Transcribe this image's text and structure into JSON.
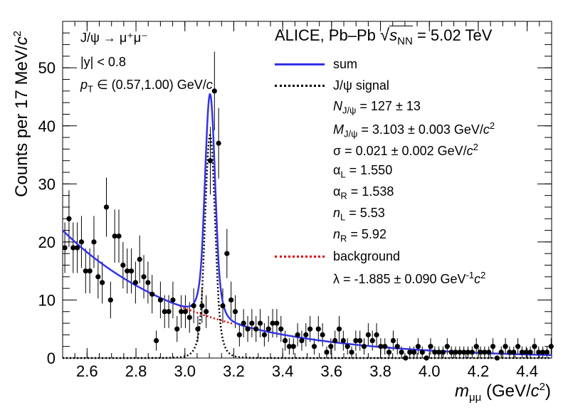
{
  "chart_data": {
    "type": "scatter",
    "title": "ALICE, Pb–Pb √s_NN = 5.02 TeV",
    "title_parts": {
      "experiment": "ALICE, Pb–Pb",
      "sqrt": "√",
      "s": "s",
      "sub": "NN",
      "energy": "= 5.02 TeV"
    },
    "xlabel": "m_μμ (GeV/c²)",
    "xlabel_parts": {
      "m": "m",
      "sub": "μμ",
      "units": "(GeV/",
      "c": "c",
      "sup": "2",
      "close": ")"
    },
    "ylabel": "Counts per 17 MeV/c²",
    "ylabel_parts": {
      "text": "Counts per 17 MeV/",
      "c": "c",
      "sup": "2"
    },
    "xlim": [
      2.5,
      4.5
    ],
    "ylim": [
      0,
      58
    ],
    "xticks": [
      2.6,
      2.8,
      3.0,
      3.2,
      3.4,
      3.6,
      3.8,
      4.0,
      4.2,
      4.4
    ],
    "xtick_labels": [
      "2.6",
      "2.8",
      "3.0",
      "3.2",
      "3.4",
      "3.6",
      "3.8",
      "4.0",
      "4.2",
      "4.4"
    ],
    "yticks": [
      0,
      10,
      20,
      30,
      40,
      50
    ],
    "ytick_labels": [
      "0",
      "10",
      "20",
      "30",
      "40",
      "50"
    ],
    "annotations": {
      "decay": "J/ψ → μ⁺μ⁻",
      "rapidity": "|y| < 0.8",
      "pt": "p_T ∈ (0.57,1.00) GeV/c",
      "pt_parts": {
        "p": "p",
        "sub": "T",
        "range": " ∈ (0.57,1.00) GeV/",
        "c": "c"
      }
    },
    "legend": [
      {
        "label": "sum",
        "color": "#3333e6",
        "style": "solid"
      },
      {
        "label": "J/ψ signal",
        "color": "#000000",
        "style": "dotted"
      },
      {
        "label": "N_J/ψ = 127 ± 13",
        "style": "text"
      },
      {
        "label": "M_J/ψ = 3.103 ± 0.003 GeV/c²",
        "style": "text"
      },
      {
        "label": "σ = 0.021 ± 0.002 GeV/c²",
        "style": "text"
      },
      {
        "label": "α_L = 1.550",
        "style": "text"
      },
      {
        "label": "α_R = 1.538",
        "style": "text"
      },
      {
        "label": "n_L = 5.53",
        "style": "text"
      },
      {
        "label": "n_R = 5.92",
        "style": "text"
      },
      {
        "label": "background",
        "color": "#e00000",
        "style": "dotted"
      },
      {
        "label": "λ = -1.885 ± 0.090 GeV⁻¹c²",
        "style": "text"
      }
    ],
    "legend_parts": {
      "n_jpsi": {
        "sym": "N",
        "sub": "J/ψ",
        "val": " = 127 ± 13"
      },
      "m_jpsi": {
        "sym": "M",
        "sub": "J/ψ",
        "val": " = 3.103 ± 0.003 GeV/",
        "c": "c",
        "sup": "2"
      },
      "sigma": {
        "sym": "σ",
        "val": " = 0.021 ± 0.002 GeV/",
        "c": "c",
        "sup": "2"
      },
      "alpha_l": {
        "sym": "α",
        "sub": "L",
        "val": " = 1.550"
      },
      "alpha_r": {
        "sym": "α",
        "sub": "R",
        "val": " = 1.538"
      },
      "n_l": {
        "sym": "n",
        "sub": "L",
        "val": " = 5.53"
      },
      "n_r": {
        "sym": "n",
        "sub": "R",
        "val": " = 5.92"
      },
      "lambda": {
        "sym": "λ",
        "val": " = -1.885 ± 0.090 GeV",
        "sup": "-1",
        "c": "c",
        "sup2": "2"
      }
    },
    "fit": {
      "signal": {
        "N": 127,
        "mean": 3.103,
        "sigma": 0.021,
        "alphaL": 1.55,
        "alphaR": 1.538,
        "nL": 5.53,
        "nR": 5.92,
        "bin_width": 0.017
      },
      "background": {
        "amplitude_at_2p5": 22.0,
        "lambda": -1.885
      },
      "signal_color": "#000000",
      "sum_color": "#3333e6",
      "background_color": "#e00000"
    },
    "series": [
      {
        "name": "data",
        "color": "#000000",
        "x": [
          2.509,
          2.526,
          2.543,
          2.56,
          2.577,
          2.594,
          2.611,
          2.628,
          2.645,
          2.662,
          2.679,
          2.696,
          2.713,
          2.73,
          2.747,
          2.764,
          2.781,
          2.798,
          2.815,
          2.832,
          2.849,
          2.866,
          2.883,
          2.9,
          2.917,
          2.934,
          2.951,
          2.968,
          2.985,
          3.002,
          3.019,
          3.036,
          3.053,
          3.07,
          3.087,
          3.104,
          3.121,
          3.138,
          3.155,
          3.172,
          3.189,
          3.206,
          3.223,
          3.24,
          3.257,
          3.274,
          3.291,
          3.308,
          3.325,
          3.342,
          3.359,
          3.376,
          3.393,
          3.41,
          3.427,
          3.444,
          3.461,
          3.478,
          3.495,
          3.512,
          3.529,
          3.546,
          3.563,
          3.58,
          3.597,
          3.614,
          3.631,
          3.648,
          3.665,
          3.682,
          3.699,
          3.716,
          3.733,
          3.75,
          3.767,
          3.784,
          3.801,
          3.818,
          3.835,
          3.852,
          3.869,
          3.886,
          3.903,
          3.92,
          3.937,
          3.954,
          3.971,
          3.988,
          4.005,
          4.022,
          4.039,
          4.056,
          4.073,
          4.09,
          4.107,
          4.124,
          4.141,
          4.158,
          4.175,
          4.192,
          4.209,
          4.226,
          4.243,
          4.26,
          4.277,
          4.294,
          4.311,
          4.328,
          4.345,
          4.362,
          4.379,
          4.396,
          4.413,
          4.43,
          4.447,
          4.464,
          4.481,
          4.498
        ],
        "y": [
          19,
          24,
          19,
          19,
          20,
          15,
          15,
          20,
          14,
          13,
          26,
          10,
          21,
          21,
          16,
          15,
          15,
          13,
          17,
          14,
          13,
          11,
          3,
          10,
          8,
          8,
          10,
          5,
          8,
          8,
          7,
          9,
          5,
          9,
          8,
          34,
          46,
          37,
          9,
          18,
          10,
          8,
          4,
          6,
          5,
          6,
          5,
          6,
          4,
          5,
          6,
          6,
          5,
          3,
          2,
          2,
          4,
          3,
          4,
          5,
          2,
          5,
          4,
          1,
          2,
          3,
          5,
          3,
          2,
          1,
          3,
          3,
          2,
          4,
          3,
          4,
          2,
          2,
          1,
          3,
          2,
          1,
          0,
          1,
          1,
          2,
          1,
          0,
          2,
          1,
          1,
          1,
          2,
          1,
          1,
          1,
          1,
          1,
          1,
          2,
          1,
          1,
          1,
          2,
          0,
          1,
          2,
          1,
          1,
          2,
          1,
          1,
          1,
          2,
          1,
          1,
          1,
          2
        ]
      }
    ]
  }
}
